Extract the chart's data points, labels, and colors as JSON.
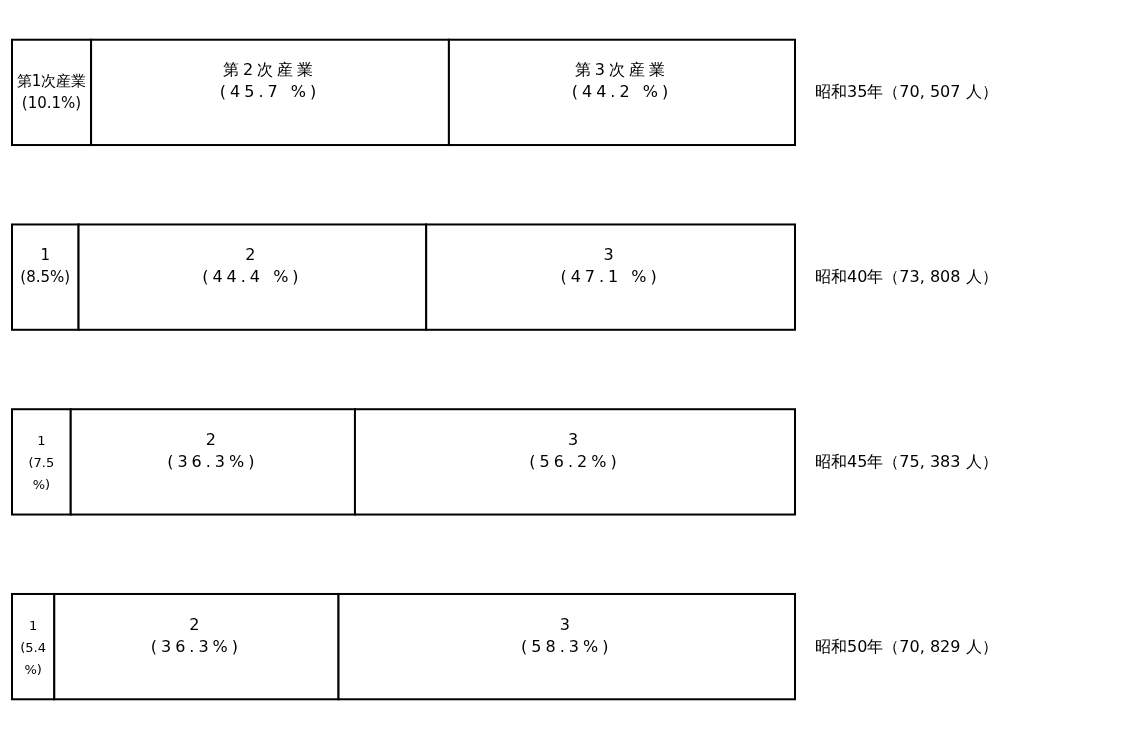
{
  "chart_data": {
    "type": "bar",
    "orientation": "horizontal",
    "stacked": true,
    "xlim": [
      0,
      100
    ],
    "categories": [
      "昭和35年（70, 507 人）",
      "昭和40年（73, 808 人）",
      "昭和45年（75, 383 人）",
      "昭和50年（70, 829 人）"
    ],
    "series": [
      {
        "color": "#ffffff",
        "values": [
          10.1,
          8.5,
          7.5,
          5.4
        ],
        "value_labels": [
          "第1次産業\n(10.1%)",
          "1\n\n(8.5%)",
          "1\n(7.5\n%)",
          "1\n(5.4\n%)"
        ]
      },
      {
        "color": "#ffffff",
        "values": [
          45.7,
          44.4,
          36.3,
          36.3
        ],
        "value_labels": [
          "第2次産業\n\n(45.7 %)",
          "2\n\n(44.4 %)",
          "2\n\n(36.3%)",
          "2\n\n(36.3%)"
        ]
      },
      {
        "color": "#ffffff",
        "values": [
          44.2,
          47.1,
          56.2,
          58.3
        ],
        "value_labels": [
          "第3次産業\n\n(44.2 %)",
          "3\n\n(47.1 %)",
          "3\n\n(56.2%)",
          "3\n\n(58.3%)"
        ]
      }
    ]
  }
}
